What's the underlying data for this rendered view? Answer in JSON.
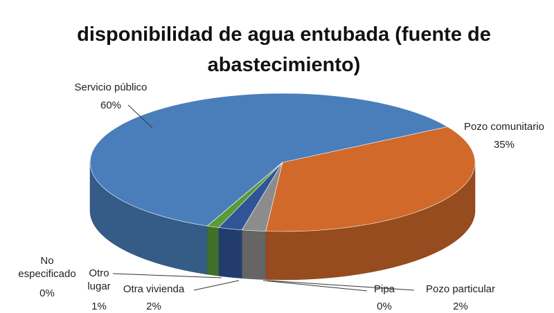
{
  "chart_data": {
    "type": "pie3d",
    "title": "disponibilidad de agua entubada (fuente de abastecimiento)",
    "categories": [
      "Servicio público",
      "Pozo comunitario",
      "Pozo particular",
      "Pipa",
      "Otra vivienda",
      "Otro lugar",
      "No especificado"
    ],
    "values": [
      60,
      35,
      2,
      0,
      2,
      1,
      0
    ],
    "value_labels": [
      "60%",
      "35%",
      "2%",
      "0%",
      "2%",
      "1%",
      "0%"
    ],
    "colors": [
      "#4a7ebb",
      "#d0692a",
      "#8c8c8c",
      "#f0c000",
      "#2f5597",
      "#5a9a3a",
      "#9db9e0"
    ]
  }
}
